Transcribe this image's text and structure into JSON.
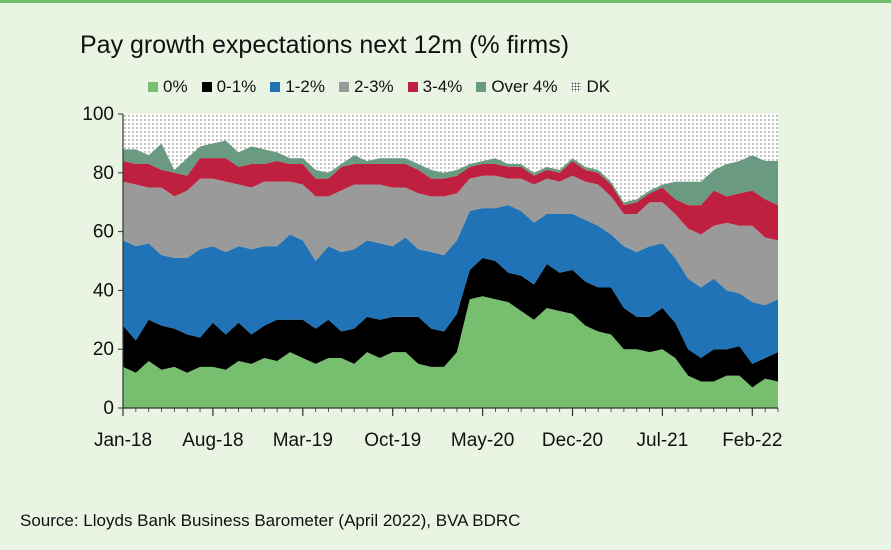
{
  "chart_data": {
    "type": "area",
    "title": "Pay growth expectations next 12m (% firms)",
    "source": "Source: Lloyds Bank Business Barometer (April 2022), BVA BDRC",
    "x_tick_labels": [
      "Jan-18",
      "Aug-18",
      "Mar-19",
      "Oct-19",
      "May-20",
      "Dec-20",
      "Jul-21",
      "Feb-22"
    ],
    "x_tick_indices": [
      0,
      7,
      14,
      21,
      28,
      35,
      42,
      49
    ],
    "y_ticks": [
      "0",
      "20",
      "40",
      "60",
      "80",
      "100"
    ],
    "ylim": [
      0,
      100
    ],
    "stacked": true,
    "legend_position": "top",
    "x": [
      "Jan-18",
      "Feb-18",
      "Mar-18",
      "Apr-18",
      "May-18",
      "Jun-18",
      "Jul-18",
      "Aug-18",
      "Sep-18",
      "Oct-18",
      "Nov-18",
      "Dec-18",
      "Jan-19",
      "Feb-19",
      "Mar-19",
      "Apr-19",
      "May-19",
      "Jun-19",
      "Jul-19",
      "Aug-19",
      "Sep-19",
      "Oct-19",
      "Nov-19",
      "Dec-19",
      "Jan-20",
      "Feb-20",
      "Mar-20",
      "Apr-20",
      "May-20",
      "Jun-20",
      "Jul-20",
      "Aug-20",
      "Sep-20",
      "Oct-20",
      "Nov-20",
      "Dec-20",
      "Jan-21",
      "Feb-21",
      "Mar-21",
      "Apr-21",
      "May-21",
      "Jun-21",
      "Jul-21",
      "Aug-21",
      "Sep-21",
      "Oct-21",
      "Nov-21",
      "Dec-21",
      "Jan-22",
      "Feb-22",
      "Mar-22",
      "Apr-22"
    ],
    "series": [
      {
        "name": "0%",
        "color": "#77bf6f",
        "values": [
          14,
          12,
          16,
          13,
          14,
          12,
          14,
          14,
          13,
          16,
          15,
          17,
          16,
          19,
          17,
          15,
          17,
          17,
          15,
          19,
          17,
          19,
          19,
          15,
          14,
          14,
          19,
          37,
          38,
          37,
          36,
          33,
          30,
          34,
          33,
          32,
          28,
          26,
          25,
          20,
          20,
          19,
          20,
          17,
          11,
          9,
          9,
          11,
          11,
          7,
          10,
          9
        ]
      },
      {
        "name": "0-1%",
        "color": "#000000",
        "values": [
          14,
          11,
          14,
          15,
          13,
          13,
          10,
          15,
          12,
          13,
          10,
          11,
          14,
          11,
          13,
          12,
          13,
          9,
          12,
          12,
          13,
          12,
          12,
          16,
          13,
          12,
          13,
          10,
          13,
          13,
          10,
          12,
          12,
          15,
          13,
          15,
          15,
          15,
          16,
          14,
          11,
          12,
          14,
          12,
          9,
          8,
          11,
          9,
          10,
          8,
          7,
          10
        ]
      },
      {
        "name": "1-2%",
        "color": "#1f73b6",
        "values": [
          29,
          32,
          26,
          24,
          24,
          26,
          30,
          26,
          28,
          26,
          29,
          27,
          25,
          29,
          27,
          23,
          25,
          27,
          27,
          26,
          26,
          24,
          27,
          23,
          26,
          26,
          25,
          20,
          17,
          18,
          23,
          22,
          21,
          17,
          20,
          19,
          21,
          21,
          18,
          21,
          22,
          24,
          22,
          22,
          24,
          24,
          24,
          20,
          18,
          21,
          18,
          18
        ]
      },
      {
        "name": "2-3%",
        "color": "#9a9a9a",
        "values": [
          20,
          21,
          19,
          23,
          21,
          23,
          24,
          23,
          24,
          21,
          21,
          22,
          22,
          18,
          19,
          22,
          17,
          21,
          22,
          19,
          20,
          20,
          17,
          19,
          19,
          20,
          16,
          11,
          11,
          11,
          9,
          11,
          13,
          12,
          11,
          13,
          13,
          14,
          13,
          11,
          13,
          15,
          14,
          15,
          17,
          18,
          18,
          23,
          23,
          26,
          23,
          20
        ]
      },
      {
        "name": "3-4%",
        "color": "#c0203f",
        "values": [
          7,
          7,
          8,
          6,
          8,
          5,
          7,
          7,
          8,
          6,
          8,
          6,
          7,
          6,
          7,
          6,
          6,
          8,
          7,
          7,
          7,
          8,
          8,
          8,
          6,
          6,
          6,
          4,
          4,
          4,
          4,
          4,
          3,
          3,
          3,
          5,
          4,
          4,
          4,
          3,
          4,
          3,
          5,
          5,
          8,
          10,
          12,
          9,
          11,
          12,
          13,
          12
        ]
      },
      {
        "name": "Over 4%",
        "color": "#6a9a82",
        "values": [
          4,
          5,
          3,
          9,
          1,
          6,
          4,
          5,
          6,
          5,
          6,
          5,
          3,
          2,
          2,
          3,
          2,
          1,
          3,
          1,
          2,
          2,
          2,
          2,
          3,
          2,
          2,
          1,
          1,
          2,
          1,
          1,
          1,
          1,
          1,
          1,
          1,
          1,
          1,
          1,
          1,
          1,
          1,
          6,
          8,
          8,
          7,
          11,
          11,
          12,
          13,
          15
        ]
      },
      {
        "name": "DK",
        "color": "#ffffff",
        "pattern": "dots",
        "values": [
          12,
          12,
          14,
          10,
          19,
          15,
          11,
          10,
          9,
          13,
          11,
          12,
          13,
          15,
          15,
          19,
          20,
          17,
          14,
          16,
          15,
          15,
          15,
          17,
          19,
          20,
          19,
          17,
          16,
          15,
          17,
          17,
          20,
          18,
          19,
          15,
          18,
          19,
          23,
          30,
          29,
          26,
          24,
          23,
          23,
          23,
          19,
          17,
          16,
          14,
          16,
          16
        ]
      }
    ]
  }
}
